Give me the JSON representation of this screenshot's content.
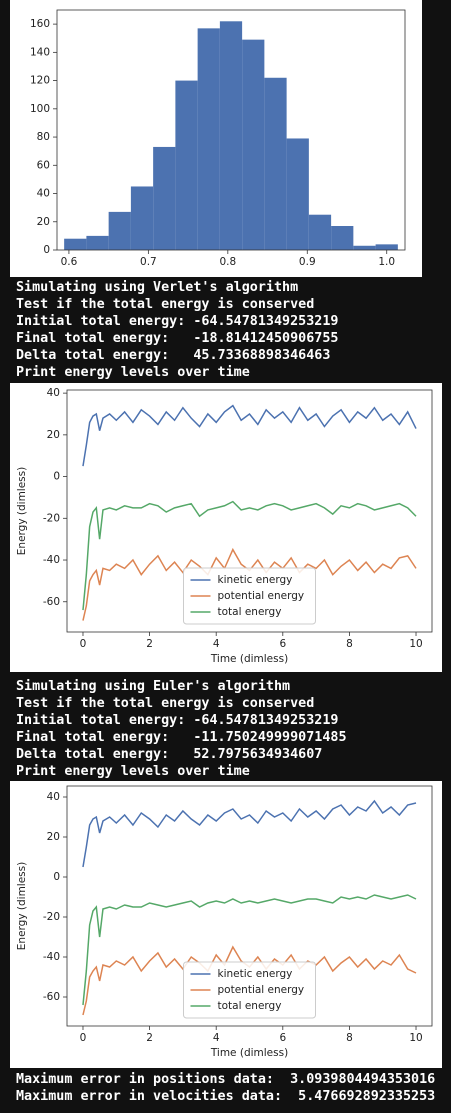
{
  "chart_data": [
    {
      "type": "histogram",
      "bins": [
        0.594,
        0.622,
        0.65,
        0.678,
        0.706,
        0.734,
        0.762,
        0.79,
        0.818,
        0.846,
        0.874,
        0.902,
        0.93,
        0.958,
        0.986,
        1.014
      ],
      "values": [
        8,
        10,
        27,
        45,
        73,
        120,
        157,
        162,
        149,
        122,
        79,
        25,
        17,
        3,
        4
      ],
      "color": "#4c72b0",
      "xlim": [
        0.585,
        1.023
      ],
      "xticks": [
        {
          "value": 0.6,
          "label": "0.6"
        },
        {
          "value": 0.7,
          "label": "0.7"
        },
        {
          "value": 0.8,
          "label": "0.8"
        },
        {
          "value": 0.9,
          "label": "0.9"
        },
        {
          "value": 1.0,
          "label": "1.0"
        }
      ],
      "ylim": [
        0,
        170
      ],
      "yticks": [
        0,
        20,
        40,
        60,
        80,
        100,
        120,
        140,
        160
      ]
    },
    {
      "type": "line",
      "x_label": "Time (dimless)",
      "y_label": "Energy (dimless)",
      "x": [
        0,
        0.1,
        0.2,
        0.3,
        0.4,
        0.5,
        0.6,
        0.8,
        1,
        1.25,
        1.5,
        1.75,
        2,
        2.25,
        2.5,
        2.75,
        3,
        3.25,
        3.5,
        3.75,
        4,
        4.25,
        4.5,
        4.75,
        5,
        5.25,
        5.5,
        5.75,
        6,
        6.25,
        6.5,
        6.75,
        7,
        7.25,
        7.5,
        7.75,
        8,
        8.25,
        8.5,
        8.75,
        9,
        9.25,
        9.5,
        9.75,
        10
      ],
      "series": [
        {
          "name": "kinetic energy",
          "color": "#4c72b0",
          "values": [
            5,
            15,
            26,
            29,
            30,
            22,
            28,
            30,
            27,
            31,
            26,
            32,
            29,
            25,
            31,
            27,
            33,
            28,
            24,
            30,
            26,
            31,
            34,
            27,
            30,
            25,
            32,
            28,
            31,
            26,
            33,
            27,
            30,
            24,
            29,
            32,
            26,
            31,
            28,
            33,
            27,
            30,
            25,
            31,
            23
          ]
        },
        {
          "name": "potential energy",
          "color": "#dd8452",
          "values": [
            -69,
            -62,
            -50,
            -47,
            -45,
            -52,
            -44,
            -45,
            -42,
            -44,
            -40,
            -47,
            -42,
            -38,
            -45,
            -41,
            -46,
            -40,
            -43,
            -47,
            -39,
            -44,
            -35,
            -42,
            -45,
            -40,
            -46,
            -41,
            -44,
            -39,
            -46,
            -42,
            -44,
            -40,
            -47,
            -43,
            -40,
            -45,
            -41,
            -46,
            -42,
            -44,
            -39,
            -38,
            -44
          ]
        },
        {
          "name": "total energy",
          "color": "#55a868",
          "values": [
            -64,
            -47,
            -24,
            -17,
            -15,
            -30,
            -16,
            -15,
            -16,
            -14,
            -15,
            -15,
            -13,
            -14,
            -17,
            -15,
            -14,
            -13,
            -19,
            -16,
            -15,
            -14,
            -12,
            -16,
            -15,
            -16,
            -14,
            -13,
            -14,
            -16,
            -15,
            -14,
            -13,
            -15,
            -18,
            -14,
            -15,
            -13,
            -14,
            -16,
            -15,
            -14,
            -13,
            -15,
            -19
          ]
        }
      ],
      "legend": "lower center",
      "xlim": [
        -0.48,
        10.48
      ],
      "xticks": [
        0,
        2,
        4,
        6,
        8,
        10
      ],
      "ylim": [
        -74.5,
        41.5
      ],
      "yticks": [
        -60,
        -40,
        -20,
        0,
        20,
        40
      ]
    },
    {
      "type": "line",
      "x_label": "Time (dimless)",
      "y_label": "Energy (dimless)",
      "x": [
        0,
        0.1,
        0.2,
        0.3,
        0.4,
        0.5,
        0.6,
        0.8,
        1,
        1.25,
        1.5,
        1.75,
        2,
        2.25,
        2.5,
        2.75,
        3,
        3.25,
        3.5,
        3.75,
        4,
        4.25,
        4.5,
        4.75,
        5,
        5.25,
        5.5,
        5.75,
        6,
        6.25,
        6.5,
        6.75,
        7,
        7.25,
        7.5,
        7.75,
        8,
        8.25,
        8.5,
        8.75,
        9,
        9.25,
        9.5,
        9.75,
        10
      ],
      "series": [
        {
          "name": "kinetic energy",
          "color": "#4c72b0",
          "values": [
            5,
            15,
            26,
            29,
            30,
            22,
            28,
            30,
            27,
            31,
            26,
            32,
            29,
            25,
            31,
            28,
            33,
            29,
            26,
            31,
            28,
            32,
            34,
            29,
            31,
            27,
            33,
            30,
            32,
            28,
            34,
            30,
            33,
            29,
            34,
            36,
            31,
            35,
            33,
            38,
            32,
            35,
            31,
            36,
            37
          ]
        },
        {
          "name": "potential energy",
          "color": "#dd8452",
          "values": [
            -69,
            -62,
            -50,
            -47,
            -45,
            -52,
            -44,
            -45,
            -42,
            -44,
            -40,
            -47,
            -42,
            -38,
            -45,
            -41,
            -46,
            -40,
            -43,
            -47,
            -39,
            -44,
            -35,
            -42,
            -45,
            -40,
            -46,
            -41,
            -44,
            -39,
            -46,
            -42,
            -44,
            -40,
            -47,
            -43,
            -40,
            -45,
            -41,
            -46,
            -42,
            -44,
            -39,
            -46,
            -48
          ]
        },
        {
          "name": "total energy",
          "color": "#55a868",
          "values": [
            -64,
            -47,
            -24,
            -17,
            -15,
            -30,
            -16,
            -15,
            -16,
            -14,
            -15,
            -15,
            -13,
            -14,
            -15,
            -14,
            -13,
            -12,
            -15,
            -13,
            -12,
            -13,
            -11,
            -13,
            -12,
            -13,
            -12,
            -11,
            -12,
            -13,
            -12,
            -11,
            -11,
            -12,
            -13,
            -10,
            -11,
            -10,
            -11,
            -9,
            -10,
            -11,
            -10,
            -9,
            -11
          ]
        }
      ],
      "legend": "lower center",
      "xlim": [
        -0.48,
        10.48
      ],
      "xticks": [
        0,
        2,
        4,
        6,
        8,
        10
      ],
      "ylim": [
        -74.5,
        45.5
      ],
      "yticks": [
        -60,
        -40,
        -20,
        0,
        20,
        40
      ]
    }
  ],
  "outputs": [
    [
      "Simulating using Verlet's algorithm",
      "Test if the total energy is conserved",
      "Initial total energy: -64.54781349253219",
      "Final total energy:   -18.81412450906755",
      "Delta total energy:   45.73368898346463",
      "Print energy levels over time"
    ],
    [
      "Simulating using Euler's algorithm",
      "Test if the total energy is conserved",
      "Initial total energy: -64.54781349253219",
      "Final total energy:   -11.750249999071485",
      "Delta total energy:   52.7975634934607",
      "Print energy levels over time"
    ],
    [
      "Maximum error in positions data:  3.0939804494353016",
      "Maximum error in velocities data:  5.476692892335253"
    ]
  ]
}
